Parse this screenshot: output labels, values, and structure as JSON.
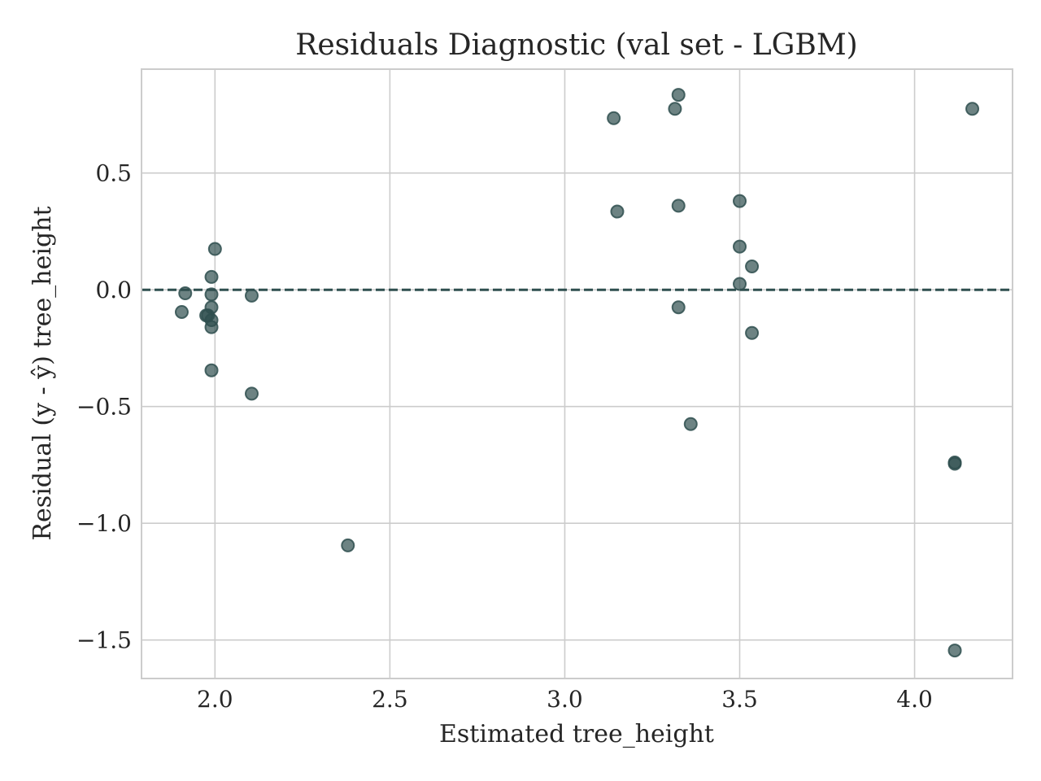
{
  "chart_data": {
    "type": "scatter",
    "title": "Residuals Diagnostic (val set - LGBM)",
    "xlabel": "Estimated tree_height",
    "ylabel": "Residual (y - ŷ) tree_height",
    "xlim": [
      1.79,
      4.28
    ],
    "ylim": [
      -1.665,
      0.945
    ],
    "x_ticks": [
      2.0,
      2.5,
      3.0,
      3.5,
      4.0
    ],
    "x_tick_labels": [
      "2.0",
      "2.5",
      "3.0",
      "3.5",
      "4.0"
    ],
    "y_ticks": [
      0.5,
      0.0,
      -0.5,
      -1.0,
      -1.5
    ],
    "y_tick_labels": [
      "0.5",
      "0.0",
      "−0.5",
      "−1.0",
      "−1.5"
    ],
    "grid": true,
    "reference_line": {
      "y": 0.0,
      "style": "dashed",
      "color": "#2f4f4f"
    },
    "marker_color": "#2f4f4f",
    "marker_alpha": 0.7,
    "points": [
      {
        "x": 1.905,
        "y": -0.095
      },
      {
        "x": 1.915,
        "y": -0.015
      },
      {
        "x": 1.975,
        "y": -0.11
      },
      {
        "x": 1.98,
        "y": -0.11
      },
      {
        "x": 1.99,
        "y": -0.13
      },
      {
        "x": 1.99,
        "y": -0.16
      },
      {
        "x": 1.99,
        "y": -0.075
      },
      {
        "x": 1.99,
        "y": -0.02
      },
      {
        "x": 1.99,
        "y": 0.055
      },
      {
        "x": 1.99,
        "y": -0.345
      },
      {
        "x": 2.0,
        "y": 0.175
      },
      {
        "x": 2.105,
        "y": -0.025
      },
      {
        "x": 2.105,
        "y": -0.445
      },
      {
        "x": 2.38,
        "y": -1.095
      },
      {
        "x": 3.14,
        "y": 0.735
      },
      {
        "x": 3.15,
        "y": 0.335
      },
      {
        "x": 3.315,
        "y": 0.775
      },
      {
        "x": 3.325,
        "y": 0.835
      },
      {
        "x": 3.325,
        "y": 0.36
      },
      {
        "x": 3.325,
        "y": -0.075
      },
      {
        "x": 3.36,
        "y": -0.575
      },
      {
        "x": 3.5,
        "y": 0.38
      },
      {
        "x": 3.5,
        "y": 0.185
      },
      {
        "x": 3.5,
        "y": 0.025
      },
      {
        "x": 3.535,
        "y": 0.1
      },
      {
        "x": 3.535,
        "y": -0.185
      },
      {
        "x": 4.115,
        "y": -0.74
      },
      {
        "x": 4.115,
        "y": -0.745
      },
      {
        "x": 4.115,
        "y": -1.545
      },
      {
        "x": 4.165,
        "y": 0.775
      }
    ]
  }
}
